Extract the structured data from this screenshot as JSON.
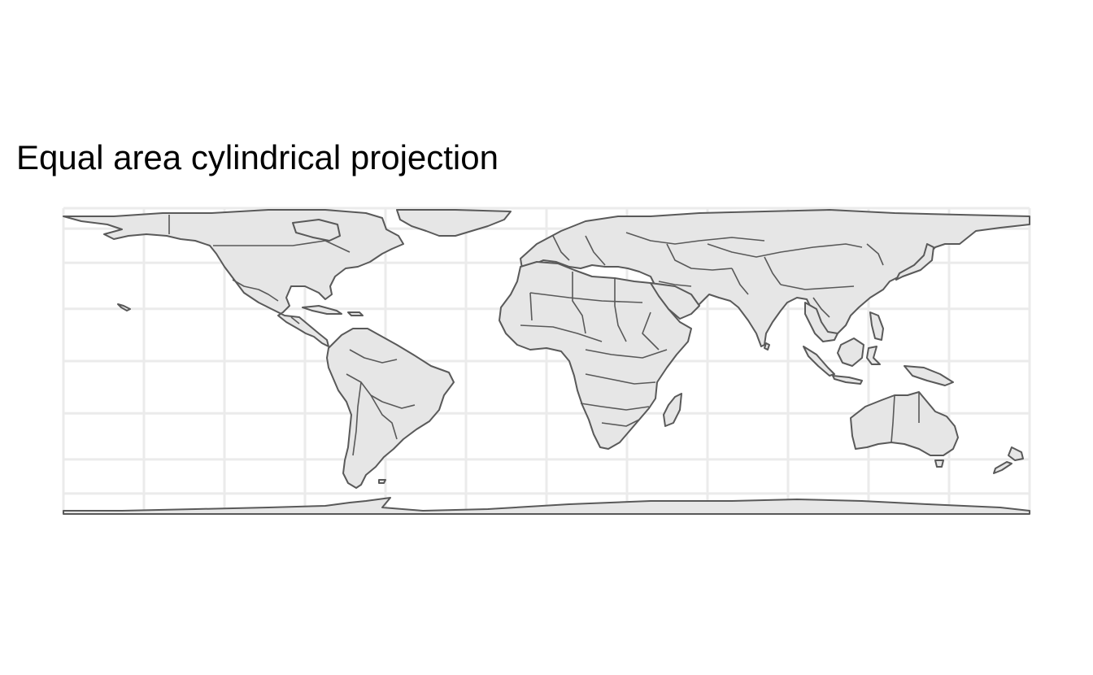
{
  "title": "Equal area cylindrical projection",
  "projection": "equal area cylindrical",
  "graticule": {
    "longitudes": [
      -180,
      -150,
      -120,
      -90,
      -60,
      -30,
      0,
      30,
      60,
      90,
      120,
      150,
      180
    ],
    "latitudes": [
      -90,
      -60,
      -40,
      -20,
      0,
      20,
      40,
      60,
      90
    ]
  },
  "colors": {
    "land_fill": "#e6e6e6",
    "outline": "#595959",
    "gridline": "#ebebeb",
    "background": "#ffffff"
  }
}
